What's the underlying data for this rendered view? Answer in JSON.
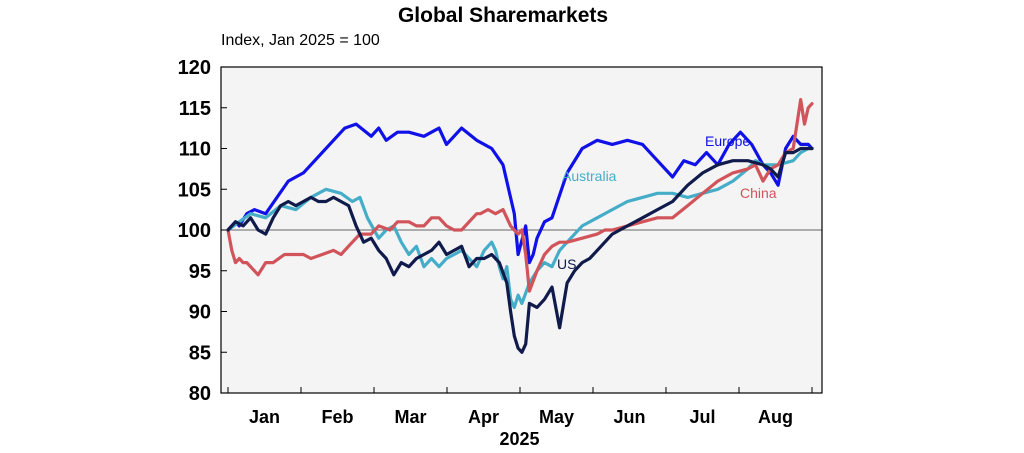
{
  "chart_data": {
    "type": "line",
    "title": "Global Sharemarkets",
    "subtitle": "Index, Jan 2025 = 100",
    "xlabel": "2025",
    "ylabel": "",
    "ylim": [
      80,
      120
    ],
    "yticks": [
      "80",
      "85",
      "90",
      "95",
      "100",
      "105",
      "110",
      "115",
      "120"
    ],
    "xticks": [
      "Jan",
      "Feb",
      "Mar",
      "Apr",
      "May",
      "Jun",
      "Jul",
      "Aug"
    ],
    "xlim": [
      0,
      155
    ],
    "reference_line": 100,
    "grid": false,
    "series": [
      {
        "name": "Europe",
        "color": "#1010e8",
        "x": [
          0,
          2,
          3,
          5,
          7,
          10,
          13,
          16,
          20,
          24,
          28,
          31,
          34,
          38,
          40,
          42,
          45,
          48,
          52,
          54,
          56,
          58,
          62,
          66,
          70,
          73,
          76,
          77,
          79,
          80,
          81,
          82,
          84,
          86,
          90,
          94,
          98,
          102,
          106,
          110,
          114,
          118,
          121,
          124,
          127,
          130,
          133,
          136,
          139,
          142,
          144,
          146,
          148,
          150,
          151,
          152,
          154,
          155
        ],
        "values": [
          100,
          101,
          100.5,
          102,
          102.5,
          102,
          104,
          106,
          107,
          109,
          111,
          112.5,
          113,
          111.5,
          112.5,
          111,
          112,
          112,
          111.5,
          112,
          112.5,
          110.5,
          112.5,
          111,
          110,
          108,
          102,
          97,
          100.5,
          96,
          97,
          99,
          101,
          101.5,
          107,
          110,
          111,
          110.5,
          111,
          110.5,
          108.5,
          106.5,
          108.5,
          108,
          109.5,
          108,
          110.5,
          112,
          110.5,
          108,
          107,
          105.5,
          110,
          111.5,
          111,
          110.5,
          110.5,
          110
        ]
      },
      {
        "name": "Australia",
        "color": "#45adc8",
        "x": [
          0,
          3,
          6,
          10,
          14,
          18,
          22,
          26,
          30,
          33,
          35,
          37,
          40,
          42,
          44,
          46,
          48,
          50,
          52,
          54,
          56,
          58,
          60,
          62,
          64,
          66,
          68,
          70,
          71,
          72,
          73,
          74,
          75,
          76,
          77,
          78,
          80,
          82,
          84,
          86,
          88,
          90,
          94,
          98,
          102,
          106,
          110,
          114,
          118,
          122,
          126,
          130,
          134,
          138,
          140,
          142,
          146,
          150,
          152,
          154,
          155
        ],
        "values": [
          100,
          101,
          102,
          101.5,
          103,
          102.5,
          104,
          105,
          104.5,
          103.5,
          104,
          101.5,
          99,
          100,
          100.5,
          98.5,
          97,
          98,
          95.5,
          96.5,
          95.5,
          96.5,
          97,
          97.5,
          96.5,
          95.5,
          97.5,
          98.5,
          97.5,
          95.5,
          94,
          95.5,
          91.5,
          90.5,
          92,
          91,
          93.5,
          95,
          96,
          95.5,
          97.5,
          98.5,
          100.5,
          101.5,
          102.5,
          103.5,
          104,
          104.5,
          104.5,
          104,
          104.5,
          105,
          106,
          107.5,
          108.5,
          108,
          108,
          108.5,
          109.5,
          110,
          110
        ]
      },
      {
        "name": "China",
        "color": "#d0545a",
        "x": [
          0,
          1,
          2,
          3,
          4,
          5,
          7,
          8,
          10,
          12,
          15,
          18,
          20,
          22,
          25,
          28,
          30,
          33,
          35,
          38,
          40,
          43,
          45,
          48,
          50,
          52,
          54,
          56,
          58,
          60,
          62,
          64,
          66,
          67,
          69,
          71,
          73,
          75,
          76,
          77,
          78,
          79,
          80,
          82,
          84,
          86,
          88,
          90,
          94,
          98,
          100,
          102,
          106,
          110,
          114,
          118,
          122,
          126,
          130,
          134,
          138,
          140,
          142,
          144,
          146,
          148,
          150,
          152,
          153,
          154,
          155
        ],
        "values": [
          100,
          97.5,
          96,
          96.5,
          96,
          96,
          95,
          94.5,
          96,
          96,
          97,
          97,
          97,
          96.5,
          97,
          97.5,
          97,
          98.5,
          99.5,
          99.5,
          100.5,
          100,
          101,
          101,
          100.5,
          100.5,
          101.5,
          101.5,
          100.5,
          100,
          100,
          101,
          102,
          102,
          102.5,
          102,
          102.5,
          100.5,
          100,
          99.5,
          100,
          97,
          92.5,
          95,
          97,
          98,
          98.5,
          98.5,
          99,
          99.5,
          100,
          100,
          100.5,
          101,
          101.5,
          101.5,
          103,
          104.5,
          106,
          107,
          107.5,
          108,
          106,
          107.5,
          108,
          109.5,
          110,
          116,
          113,
          115,
          115.5
        ]
      },
      {
        "name": "US",
        "color": "#101b4b",
        "x": [
          0,
          2,
          4,
          6,
          8,
          10,
          12,
          14,
          16,
          18,
          20,
          22,
          24,
          26,
          28,
          30,
          32,
          34,
          36,
          38,
          40,
          42,
          44,
          46,
          48,
          50,
          52,
          54,
          56,
          58,
          60,
          62,
          64,
          66,
          68,
          70,
          72,
          74,
          75,
          76,
          77,
          78,
          79,
          80,
          82,
          84,
          86,
          88,
          90,
          92,
          94,
          96,
          98,
          100,
          102,
          106,
          110,
          114,
          118,
          122,
          126,
          130,
          134,
          138,
          142,
          144,
          146,
          148,
          150,
          152,
          155
        ],
        "values": [
          100,
          101,
          100.5,
          101.5,
          100,
          99.5,
          101.5,
          103,
          103.5,
          103,
          103.5,
          104,
          103.5,
          103.5,
          104,
          103.5,
          103,
          100.5,
          98.5,
          99,
          97.5,
          96.5,
          94.5,
          96,
          95.5,
          96.5,
          97,
          97.5,
          98.5,
          97,
          97.5,
          98,
          95.5,
          96.5,
          96.5,
          97,
          96,
          93.5,
          90,
          87,
          85.5,
          85,
          86,
          91,
          90.5,
          91.5,
          93,
          88,
          93.5,
          95,
          96,
          96.5,
          97.5,
          98.5,
          99.5,
          100.5,
          101.5,
          102.5,
          103.5,
          105.5,
          107,
          108,
          108.5,
          108.5,
          108,
          107.5,
          106.5,
          109.5,
          109.5,
          110,
          110
        ]
      }
    ]
  }
}
